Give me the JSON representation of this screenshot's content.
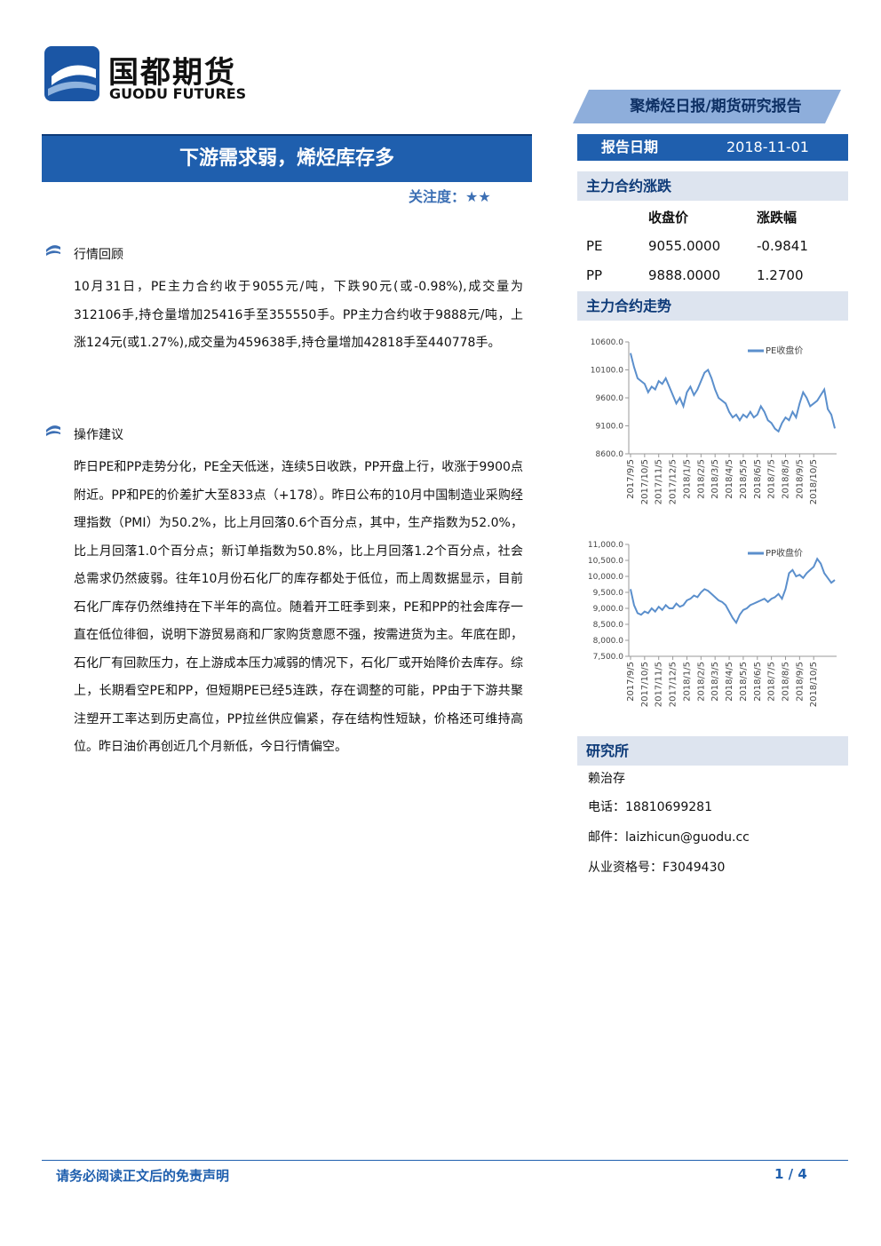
{
  "header": {
    "company_cn": "国都期货",
    "company_en": "GUODU FUTURES",
    "banner": "聚烯烃日报/期货研究报告",
    "date_label": "报告日期",
    "date": "2018-11-01"
  },
  "title": "下游需求弱，烯烃库存多",
  "attention": "关注度：★★",
  "sections": [
    {
      "heading": "行情回顾",
      "text": "10月31日，PE主力合约收于9055元/吨，下跌90元(或-0.98%),成交量为312106手,持仓量增加25416手至355550手。PP主力合约收于9888元/吨，上涨124元(或1.27%),成交量为459638手,持仓量增加42818手至440778手。"
    },
    {
      "heading": "操作建议",
      "text": "昨日PE和PP走势分化，PE全天低迷，连续5日收跌，PP开盘上行，收涨于9900点附近。PP和PE的价差扩大至833点（+178）。昨日公布的10月中国制造业采购经理指数（PMI）为50.2%，比上月回落0.6个百分点，其中，生产指数为52.0%，比上月回落1.0个百分点；新订单指数为50.8%，比上月回落1.2个百分点，社会总需求仍然疲弱。往年10月份石化厂的库存都处于低位，而上周数据显示，目前石化厂库存仍然维持在下半年的高位。随着开工旺季到来，PE和PP的社会库存一直在低位徘徊，说明下游贸易商和厂家购货意愿不强，按需进货为主。年底在即，石化厂有回款压力，在上游成本压力减弱的情况下，石化厂或开始降价去库存。综上，长期看空PE和PP，但短期PE已经5连跌，存在调整的可能，PP由于下游共聚注塑开工率达到历史高位，PP拉丝供应偏紧，存在结构性短缺，价格还可维持高位。昨日油价再创近几个月新低，今日行情偏空。"
    }
  ],
  "sidebar": {
    "change_heading": "主力合约涨跌",
    "table": {
      "columns": [
        "收盘价",
        "涨跌幅"
      ],
      "rows": [
        [
          "PE",
          "9055.0000",
          "-0.9841"
        ],
        [
          "PP",
          "9888.0000",
          "1.2700"
        ]
      ]
    },
    "trend_heading": "主力合约走势",
    "research_heading": "研究所",
    "researcher": "赖治存",
    "phone": "电话：18810699281",
    "email": "邮件：laizhicun@guodu.cc",
    "license": "从业资格号：F3049430"
  },
  "chart_data": [
    {
      "type": "line",
      "categories": [
        "2017/9/5",
        null,
        null,
        null,
        "2017/10/5",
        null,
        null,
        null,
        "2017/11/5",
        null,
        null,
        null,
        "2017/12/5",
        null,
        null,
        null,
        "2018/1/5",
        null,
        null,
        null,
        "2018/2/5",
        null,
        null,
        null,
        "2018/3/5",
        null,
        null,
        null,
        "2018/4/5",
        null,
        null,
        null,
        "2018/5/5",
        null,
        null,
        null,
        "2018/6/5",
        null,
        null,
        null,
        "2018/7/5",
        null,
        null,
        null,
        "2018/8/5",
        null,
        null,
        null,
        "2018/9/5",
        null,
        null,
        null,
        "2018/10/5",
        null,
        null,
        null,
        null,
        null,
        null
      ],
      "series": [
        {
          "name": "PE收盘价",
          "color": "#5b8fcc",
          "values": [
            10400,
            10150,
            9950,
            9900,
            9850,
            9700,
            9800,
            9750,
            9900,
            9850,
            9950,
            9800,
            9650,
            9500,
            9600,
            9450,
            9700,
            9800,
            9650,
            9750,
            9900,
            10050,
            10100,
            9950,
            9750,
            9600,
            9550,
            9500,
            9350,
            9250,
            9300,
            9200,
            9300,
            9250,
            9350,
            9250,
            9300,
            9450,
            9350,
            9200,
            9150,
            9050,
            9000,
            9150,
            9250,
            9200,
            9350,
            9250,
            9500,
            9700,
            9600,
            9450,
            9500,
            9550,
            9650,
            9750,
            9400,
            9300,
            9055
          ]
        }
      ],
      "ylim": [
        8600,
        10600
      ],
      "yticks": [
        {
          "value": 8600,
          "label": "8600.0"
        },
        {
          "value": 9100,
          "label": "9100.0"
        },
        {
          "value": 9600,
          "label": "9600.0"
        },
        {
          "value": 10100,
          "label": "10100.0"
        },
        {
          "value": 10600,
          "label": "10600.0"
        }
      ],
      "legend": "top-right"
    },
    {
      "type": "line",
      "categories": [
        "2017/9/5",
        null,
        null,
        null,
        "2017/10/5",
        null,
        null,
        null,
        "2017/11/5",
        null,
        null,
        null,
        "2017/12/5",
        null,
        null,
        null,
        "2018/1/5",
        null,
        null,
        null,
        "2018/2/5",
        null,
        null,
        null,
        "2018/3/5",
        null,
        null,
        null,
        "2018/4/5",
        null,
        null,
        null,
        "2018/5/5",
        null,
        null,
        null,
        "2018/6/5",
        null,
        null,
        null,
        "2018/7/5",
        null,
        null,
        null,
        "2018/8/5",
        null,
        null,
        null,
        "2018/9/5",
        null,
        null,
        null,
        "2018/10/5",
        null,
        null,
        null,
        null,
        null,
        null
      ],
      "series": [
        {
          "name": "PP收盘价",
          "color": "#5b8fcc",
          "values": [
            9600,
            9100,
            8850,
            8800,
            8900,
            8850,
            9000,
            8900,
            9050,
            8950,
            9100,
            9000,
            9000,
            9150,
            9050,
            9100,
            9250,
            9300,
            9400,
            9350,
            9500,
            9600,
            9550,
            9450,
            9350,
            9250,
            9200,
            9100,
            8900,
            8700,
            8550,
            8800,
            8950,
            9000,
            9100,
            9150,
            9200,
            9250,
            9300,
            9200,
            9300,
            9350,
            9450,
            9300,
            9600,
            10100,
            10200,
            10000,
            10050,
            9950,
            10100,
            10200,
            10300,
            10550,
            10400,
            10100,
            9950,
            9800,
            9888
          ]
        }
      ],
      "ylim": [
        7500,
        11000
      ],
      "yticks": [
        {
          "value": 7500,
          "label": "7,500.0"
        },
        {
          "value": 8000,
          "label": "8,000.0"
        },
        {
          "value": 8500,
          "label": "8,500.0"
        },
        {
          "value": 9000,
          "label": "9,000.0"
        },
        {
          "value": 9500,
          "label": "9,500.0"
        },
        {
          "value": 10000,
          "label": "10,000.0"
        },
        {
          "value": 10500,
          "label": "10,500.0"
        },
        {
          "value": 11000,
          "label": "11,000.0"
        }
      ],
      "legend": "top-right"
    }
  ],
  "footer": {
    "disclaimer": "请务必阅读正文后的免责声明",
    "page": "1 / 4"
  }
}
